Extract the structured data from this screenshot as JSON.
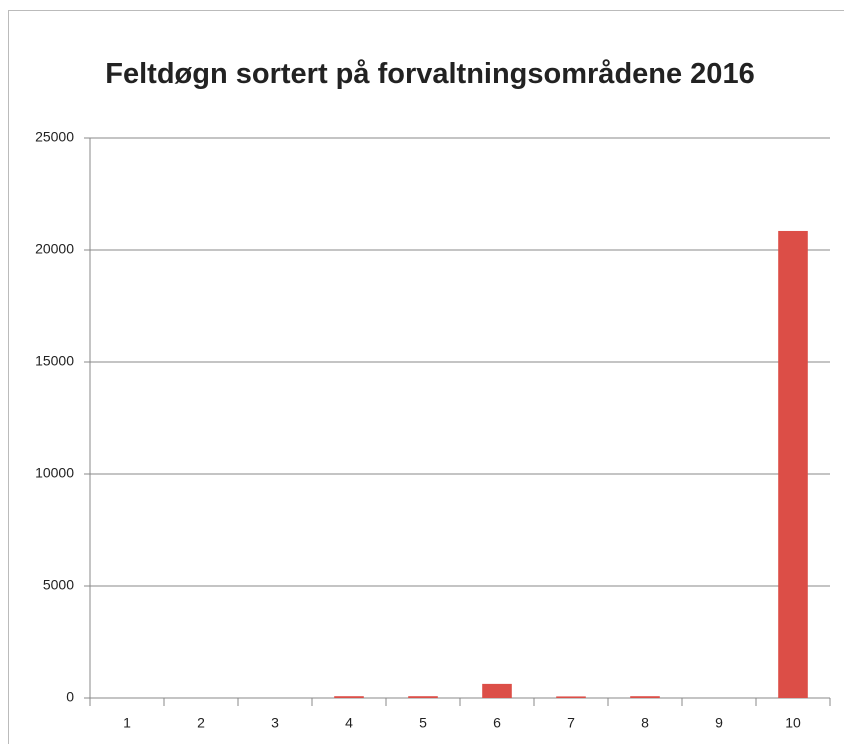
{
  "chart_data": {
    "type": "bar",
    "title": "Feltdøgn sortert på forvaltningsområdene 2016",
    "categories": [
      "1",
      "2",
      "3",
      "4",
      "5",
      "6",
      "7",
      "8",
      "9",
      "10"
    ],
    "values": [
      0,
      0,
      0,
      80,
      80,
      630,
      70,
      80,
      0,
      20850
    ],
    "color": "#dc4e47",
    "ylim": [
      0,
      25000
    ],
    "yticks": [
      0,
      5000,
      10000,
      15000,
      20000,
      25000
    ],
    "grid": true
  }
}
